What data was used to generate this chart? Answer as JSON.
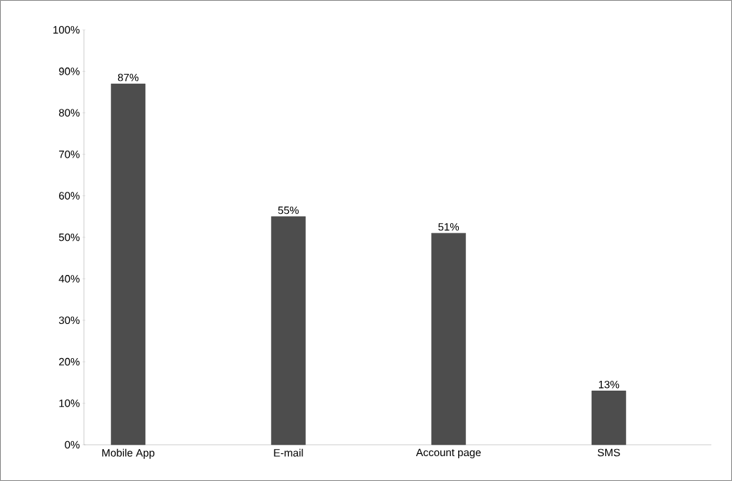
{
  "chart_data": {
    "type": "bar",
    "categories": [
      "Mobile App",
      "E-mail",
      "Account page",
      "SMS"
    ],
    "values": [
      87,
      55,
      51,
      13
    ],
    "value_labels": [
      "87%",
      "55%",
      "51%",
      "13%"
    ],
    "color": "#4d4d4d",
    "ylim": [
      0,
      100
    ],
    "yticks": [
      {
        "value": 0,
        "label": "0%"
      },
      {
        "value": 10,
        "label": "10%"
      },
      {
        "value": 20,
        "label": "20%"
      },
      {
        "value": 30,
        "label": "30%"
      },
      {
        "value": 40,
        "label": "40%"
      },
      {
        "value": 50,
        "label": "50%"
      },
      {
        "value": 60,
        "label": "60%"
      },
      {
        "value": 70,
        "label": "70%"
      },
      {
        "value": 80,
        "label": "80%"
      },
      {
        "value": 90,
        "label": "90%"
      },
      {
        "value": 100,
        "label": "100%"
      }
    ],
    "grid": false
  }
}
